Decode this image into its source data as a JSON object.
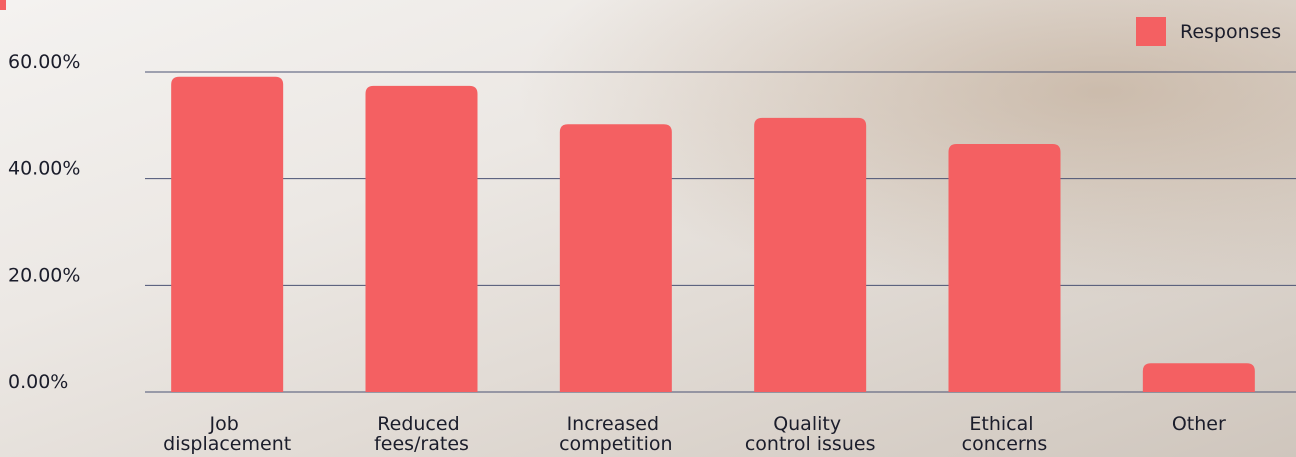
{
  "chart_data": {
    "type": "bar",
    "categories": [
      "Job displacement",
      "Reduced fees/rates",
      "Increased competition",
      "Quality control issues",
      "Ethical concerns",
      "Other"
    ],
    "series": [
      {
        "name": "Responses",
        "color": "#f46062",
        "values": [
          59.1,
          57.4,
          50.2,
          51.4,
          46.5,
          5.4
        ]
      }
    ],
    "ylim": [
      0,
      60
    ],
    "yticks": [
      {
        "value": 0,
        "label": "0.00%"
      },
      {
        "value": 20,
        "label": "20.00%"
      },
      {
        "value": 40,
        "label": "40.00%"
      },
      {
        "value": 60,
        "label": "60.00%"
      }
    ],
    "grid": true,
    "legend": "top-right"
  }
}
